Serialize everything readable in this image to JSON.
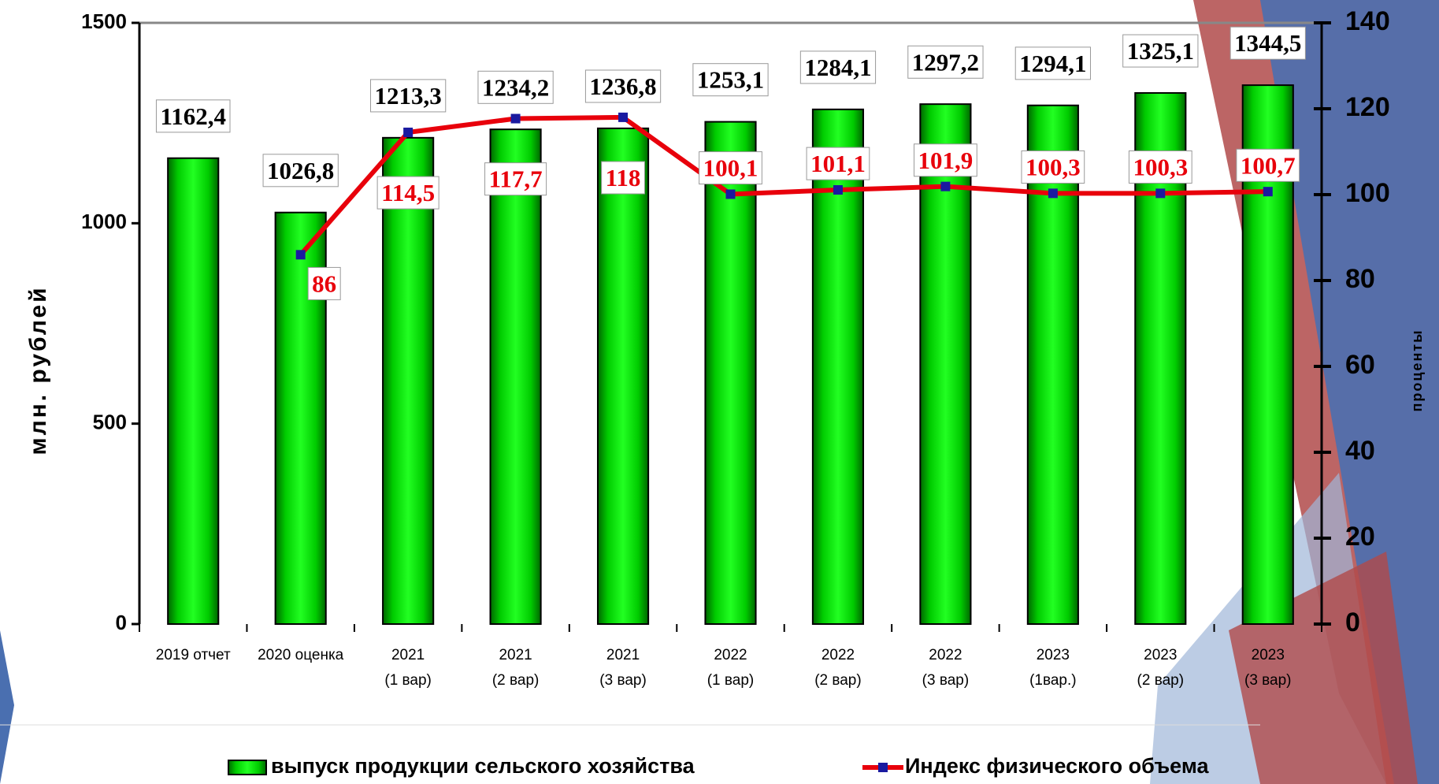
{
  "chart_data": {
    "type": "bar",
    "categories": [
      "2019 отчет",
      "2020 оценка",
      "2021\n(1 вар)",
      "2021\n(2 вар)",
      "2021\n(3 вар)",
      "2022\n(1 вар)",
      "2022\n(2 вар)",
      "2022\n(3 вар)",
      "2023\n(1вар.)",
      "2023\n(2 вар)",
      "2023\n(3 вар)"
    ],
    "series": [
      {
        "name": "выпуск продукции сельского хозяйства",
        "type": "bar",
        "color": "#00dd00",
        "values": [
          1162.4,
          1026.8,
          1213.3,
          1234.2,
          1236.8,
          1253.1,
          1284.1,
          1297.2,
          1294.1,
          1325.1,
          1344.5
        ],
        "value_labels": [
          "1162,4",
          "1026,8",
          "1213,3",
          "1234,2",
          "1236,8",
          "1253,1",
          "1284,1",
          "1297,2",
          "1294,1",
          "1325,1",
          "1344,5"
        ]
      },
      {
        "name": "Индекс физического объема",
        "type": "line",
        "axis": "y2",
        "color": "#e8000b",
        "marker_color": "#1a1aa0",
        "values": [
          null,
          86,
          114.5,
          117.7,
          118,
          100.1,
          101.1,
          101.9,
          100.3,
          100.3,
          100.7
        ],
        "value_labels": [
          null,
          "86",
          "114,5",
          "117,7",
          "118",
          "100,1",
          "101,1",
          "101,9",
          "100,3",
          "100,3",
          "100,7"
        ]
      }
    ],
    "ylabel": "млн. рублей",
    "y2label": "проценты",
    "ylim": [
      0,
      1500
    ],
    "yticks": [
      0,
      500,
      1000,
      1500
    ],
    "y2lim": [
      0,
      140
    ],
    "y2ticks": [
      0,
      20,
      40,
      60,
      80,
      100,
      120,
      140
    ]
  }
}
